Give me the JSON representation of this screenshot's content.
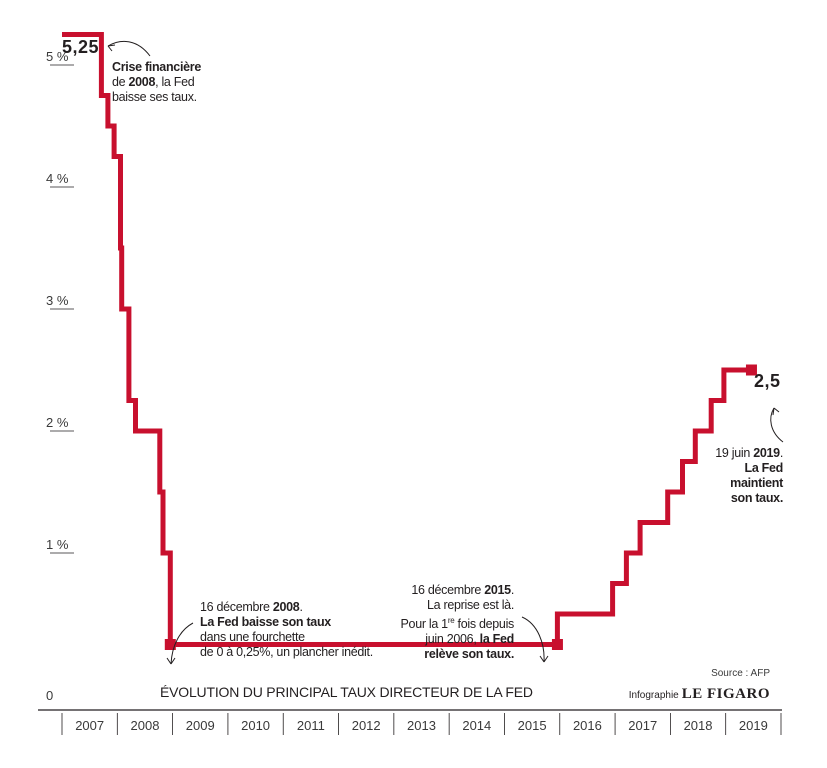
{
  "chart_data": {
    "type": "line",
    "step": true,
    "title": "ÉVOLUTION DU PRINCIPAL TAUX DIRECTEUR DE LA FED",
    "ylabel": "",
    "xlabel": "",
    "y_ticks": [
      "0",
      "1 %",
      "2 %",
      "3 %",
      "4 %",
      "5 %"
    ],
    "y_tick_values": [
      0,
      1,
      2,
      3,
      4,
      5
    ],
    "ylim": [
      0,
      5.25
    ],
    "x_ticks": [
      "2007",
      "2008",
      "2009",
      "2010",
      "2011",
      "2012",
      "2013",
      "2014",
      "2015",
      "2016",
      "2017",
      "2018",
      "2019"
    ],
    "xlim": [
      "2007-01-01",
      "2019-12-31"
    ],
    "series": [
      {
        "color": "#c8102e",
        "points": [
          {
            "x": "2007-01-01",
            "y": 5.25
          },
          {
            "x": "2007-09-18",
            "y": 4.75
          },
          {
            "x": "2007-10-31",
            "y": 4.5
          },
          {
            "x": "2007-12-11",
            "y": 4.25
          },
          {
            "x": "2008-01-22",
            "y": 3.5
          },
          {
            "x": "2008-01-30",
            "y": 3.0
          },
          {
            "x": "2008-03-18",
            "y": 2.25
          },
          {
            "x": "2008-04-30",
            "y": 2.0
          },
          {
            "x": "2008-10-08",
            "y": 1.5
          },
          {
            "x": "2008-10-29",
            "y": 1.0
          },
          {
            "x": "2008-12-16",
            "y": 0.25
          },
          {
            "x": "2015-12-16",
            "y": 0.5
          },
          {
            "x": "2016-12-14",
            "y": 0.75
          },
          {
            "x": "2017-03-15",
            "y": 1.0
          },
          {
            "x": "2017-06-14",
            "y": 1.25
          },
          {
            "x": "2017-12-13",
            "y": 1.5
          },
          {
            "x": "2018-03-21",
            "y": 1.75
          },
          {
            "x": "2018-06-13",
            "y": 2.0
          },
          {
            "x": "2018-09-26",
            "y": 2.25
          },
          {
            "x": "2018-12-19",
            "y": 2.5
          },
          {
            "x": "2019-06-19",
            "y": 2.5
          }
        ]
      }
    ],
    "markers": [
      {
        "x": "2008-12-16",
        "y": 0.25
      },
      {
        "x": "2015-12-16",
        "y": 0.25
      },
      {
        "x": "2019-06-19",
        "y": 2.5
      }
    ],
    "grid": false
  },
  "labels": {
    "start_value": "5,25",
    "end_value": "2,5"
  },
  "annotations": {
    "crisis_line1": "Crise financière",
    "crisis_line2_pre": "de ",
    "crisis_line2_bold": "2008",
    "crisis_line2_post": ", la Fed",
    "crisis_line3": "baisse ses taux.",
    "dec2008_line1_pre": "16 décembre ",
    "dec2008_line1_bold": "2008",
    "dec2008_line1_post": ".",
    "dec2008_line2": "La Fed baisse son taux",
    "dec2008_line3": "dans une fourchette",
    "dec2008_line4": "de 0 à 0,25%, un plancher inédit.",
    "dec2015_line1_pre": "16 décembre ",
    "dec2015_line1_bold": "2015",
    "dec2015_line1_post": ".",
    "dec2015_line2": "La reprise est là.",
    "dec2015_line3_pre": "Pour la 1",
    "dec2015_line3_sup": "re",
    "dec2015_line3_post": " fois depuis",
    "dec2015_line4_pre": "juin 2006, ",
    "dec2015_line4_bold": "la Fed",
    "dec2015_line5": "relève son taux.",
    "jun2019_line1_pre": "19 juin ",
    "jun2019_line1_bold": "2019",
    "jun2019_line1_post": ".",
    "jun2019_line2": "La Fed",
    "jun2019_line3": "maintient",
    "jun2019_line4": "son taux."
  },
  "footer": {
    "source": "Source : AFP",
    "credit_prefix": "Infographie",
    "credit_brand": "LE FIGARO"
  },
  "colors": {
    "line": "#c8102e",
    "text": "#231f20"
  }
}
